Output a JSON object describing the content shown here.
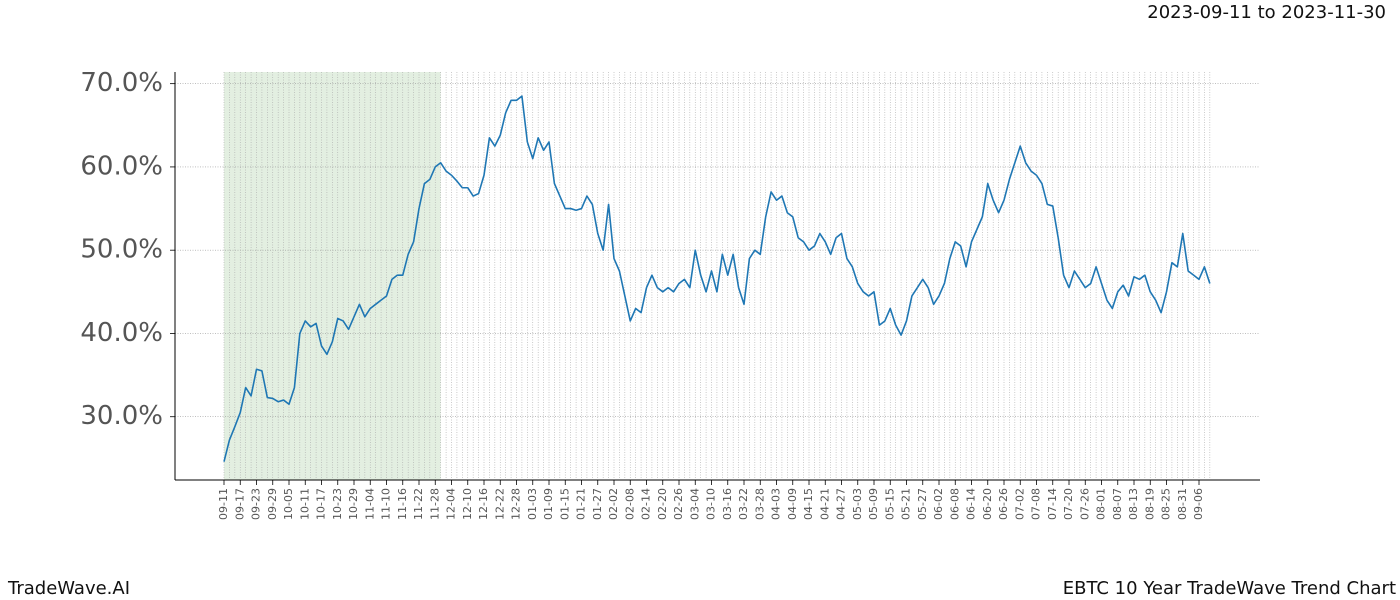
{
  "chart_data": {
    "type": "line",
    "title": "2023-09-11 to 2023-11-30",
    "brand": "TradeWave.AI",
    "caption": "EBTC 10 Year TradeWave Trend Chart",
    "categories": [
      "09-11",
      null,
      null,
      "09-17",
      null,
      null,
      "09-23",
      null,
      null,
      "09-29",
      null,
      null,
      "10-05",
      null,
      null,
      "10-11",
      null,
      null,
      "10-17",
      null,
      null,
      "10-23",
      null,
      null,
      "10-29",
      null,
      null,
      "11-04",
      null,
      null,
      "11-10",
      null,
      null,
      "11-16",
      null,
      null,
      "11-22",
      null,
      null,
      "11-28",
      null,
      null,
      "12-04",
      null,
      null,
      "12-10",
      null,
      null,
      "12-16",
      null,
      null,
      "12-22",
      null,
      null,
      "12-28",
      null,
      null,
      "01-03",
      null,
      null,
      "01-09",
      null,
      null,
      "01-15",
      null,
      null,
      "01-21",
      null,
      null,
      "01-27",
      null,
      null,
      "02-02",
      null,
      null,
      "02-08",
      null,
      null,
      "02-14",
      null,
      null,
      "02-20",
      null,
      null,
      "02-26",
      null,
      null,
      "03-04",
      null,
      null,
      "03-10",
      null,
      null,
      "03-16",
      null,
      null,
      "03-22",
      null,
      null,
      "03-28",
      null,
      null,
      "04-03",
      null,
      null,
      "04-09",
      null,
      null,
      "04-15",
      null,
      null,
      "04-21",
      null,
      null,
      "04-27",
      null,
      null,
      "05-03",
      null,
      null,
      "05-09",
      null,
      null,
      "05-15",
      null,
      null,
      "05-21",
      null,
      null,
      "05-27",
      null,
      null,
      "06-02",
      null,
      null,
      "06-08",
      null,
      null,
      "06-14",
      null,
      null,
      "06-20",
      null,
      null,
      "06-26",
      null,
      null,
      "07-02",
      null,
      null,
      "07-08",
      null,
      null,
      "07-14",
      null,
      null,
      "07-20",
      null,
      null,
      "07-26",
      null,
      null,
      "08-01",
      null,
      null,
      "08-07",
      null,
      null,
      "08-13",
      null,
      null,
      "08-19",
      null,
      null,
      "08-25",
      null,
      null,
      "08-31",
      null,
      null,
      "09-06",
      null,
      null
    ],
    "series": [
      {
        "name": "EBTC",
        "color": "#1f77b4",
        "values": [
          24.6,
          27.2,
          28.8,
          30.5,
          33.5,
          32.5,
          35.7,
          35.5,
          32.3,
          32.2,
          31.8,
          32,
          31.5,
          33.5,
          40,
          41.5,
          40.8,
          41.2,
          38.5,
          37.5,
          39,
          41.8,
          41.5,
          40.5,
          42,
          43.5,
          42,
          43,
          43.5,
          44,
          44.5,
          46.5,
          47,
          47,
          49.5,
          51,
          55,
          58,
          58.5,
          60,
          60.5,
          59.5,
          59,
          58.3,
          57.5,
          57.5,
          56.5,
          56.8,
          59,
          63.5,
          62.5,
          63.8,
          66.5,
          68,
          68,
          68.5,
          63,
          61,
          63.5,
          62,
          63,
          58,
          56.5,
          55,
          55,
          54.8,
          55,
          56.5,
          55.5,
          52,
          50,
          55.5,
          49,
          47.5,
          44.5,
          41.5,
          43,
          42.5,
          45.5,
          47,
          45.5,
          45,
          45.5,
          45,
          46,
          46.5,
          45.5,
          50,
          47,
          45,
          47.5,
          45,
          49.5,
          47,
          49.5,
          45.5,
          43.5,
          49,
          50,
          49.5,
          54,
          57,
          56,
          56.5,
          54.5,
          54,
          51.5,
          51,
          50,
          50.5,
          52,
          51,
          49.5,
          51.5,
          52,
          49,
          48,
          46,
          45,
          44.5,
          45,
          41,
          41.5,
          43,
          41,
          39.8,
          41.5,
          44.5,
          45.5,
          46.5,
          45.5,
          43.5,
          44.5,
          46,
          49,
          51,
          50.5,
          48,
          51,
          52.5,
          54,
          58,
          56,
          54.5,
          56,
          58.5,
          60.5,
          62.5,
          60.5,
          59.5,
          59,
          58,
          55.5,
          55.3,
          51.5,
          47,
          45.5,
          47.5,
          46.5,
          45.5,
          46,
          48,
          46,
          44,
          43,
          45,
          45.8,
          44.5,
          46.8,
          46.5,
          47,
          45,
          44,
          42.5,
          45,
          48.5,
          48,
          52,
          47.5,
          47,
          46.5,
          48,
          46
        ]
      }
    ],
    "ylim": [
      22.4,
      71.4
    ],
    "yticks": [
      {
        "value": 30,
        "label": "30.0%"
      },
      {
        "value": 40,
        "label": "40.0%"
      },
      {
        "value": 50,
        "label": "50.0%"
      },
      {
        "value": 60,
        "label": "60.0%"
      },
      {
        "value": 70,
        "label": "70.0%"
      }
    ],
    "shaded_range": [
      0,
      40
    ],
    "shade_color": "#e3efe1",
    "grid": true
  }
}
